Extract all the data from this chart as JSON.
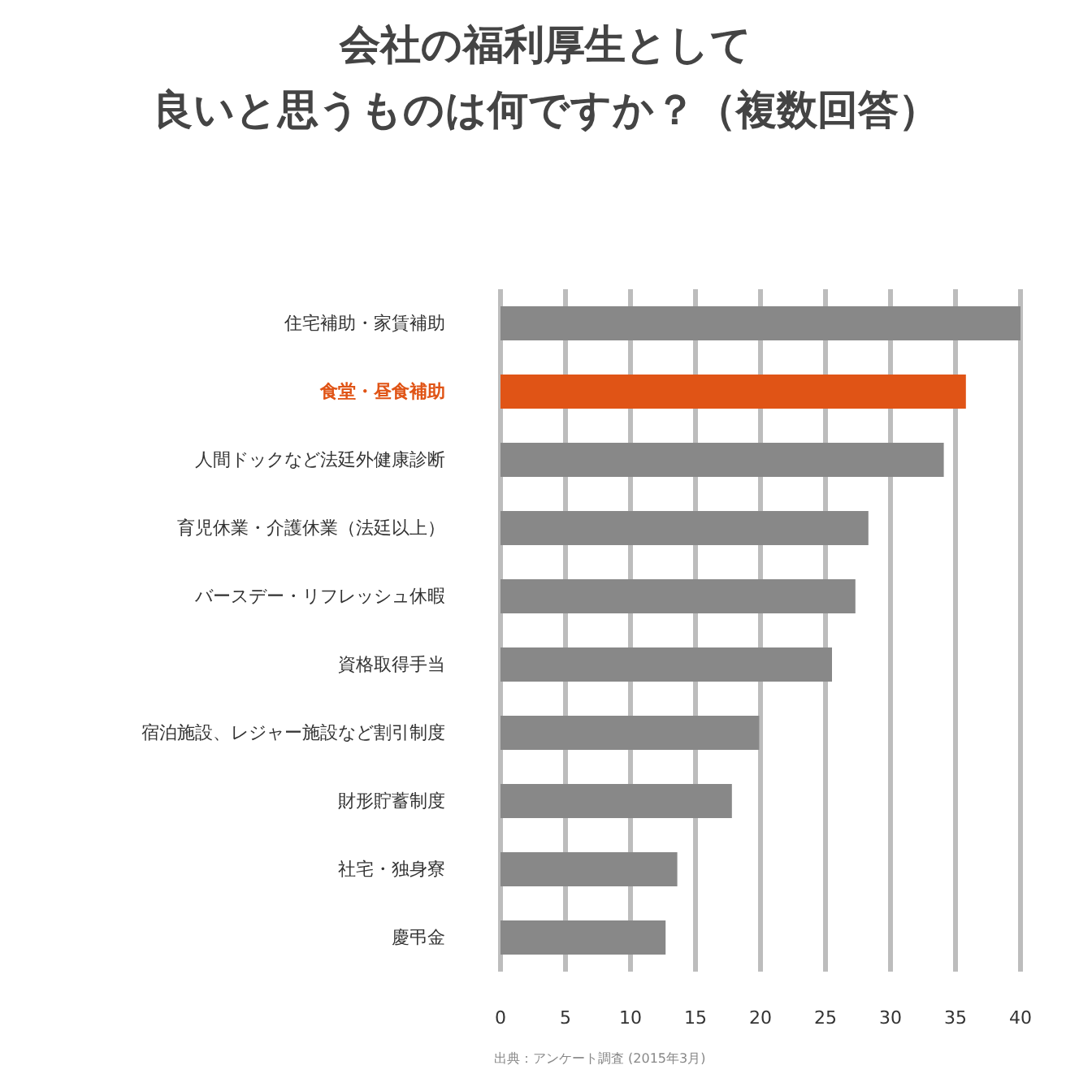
{
  "chart_data": {
    "type": "bar",
    "orientation": "horizontal",
    "title": "会社の福利厚生として",
    "subtitle": "良いと思うものは何ですか？（複数回答）",
    "categories": [
      "住宅補助・家賃補助",
      "食堂・昼食補助",
      "人間ドックなど法廷外健康診断",
      "育児休業・介護休業（法廷以上）",
      "バースデー・リフレッシュ休暇",
      "資格取得手当",
      "宿泊施設、レジャー施設など割引制度",
      "財形貯蓄制度",
      "社宅・独身寮",
      "慶弔金"
    ],
    "values": [
      40,
      35.8,
      34.1,
      28.3,
      27.3,
      25.5,
      19.9,
      17.8,
      13.6,
      12.7
    ],
    "colors": [
      "#888888",
      "#e05416",
      "#888888",
      "#888888",
      "#888888",
      "#888888",
      "#888888",
      "#888888",
      "#888888",
      "#888888"
    ],
    "xlim": [
      0,
      40
    ],
    "xticks": [
      0,
      5,
      10,
      15,
      20,
      25,
      30,
      35,
      40
    ],
    "grid": "x",
    "annotations": [
      "出典：アンケート調査 (2015年3月)"
    ]
  }
}
